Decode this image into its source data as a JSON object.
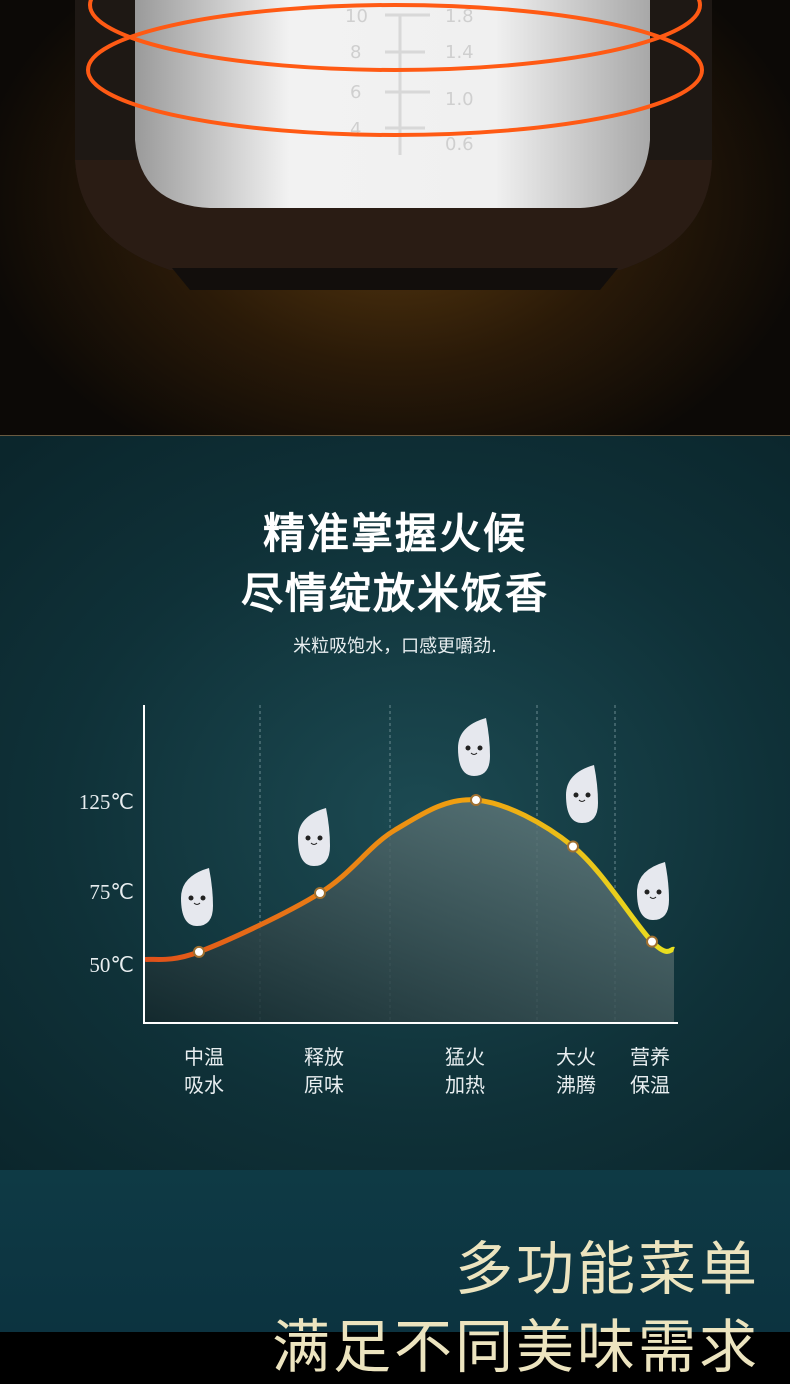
{
  "top": {
    "cup_marks_left": [
      "10",
      "8",
      "6",
      "4"
    ],
    "cup_marks_right": [
      "1.8",
      "1.4",
      "1.0",
      "0.6"
    ]
  },
  "section2": {
    "title_line1": "精准掌握火候",
    "title_line2": "尽情绽放米饭香",
    "subtitle": "米粒吸饱水，口感更嚼劲."
  },
  "chart_data": {
    "type": "area",
    "y_ticks": [
      "125℃",
      "75℃",
      "50℃"
    ],
    "categories": [
      [
        "中温",
        "吸水"
      ],
      [
        "释放",
        "原味"
      ],
      [
        "猛火",
        "加热"
      ],
      [
        "大火",
        "沸腾"
      ],
      [
        "营养",
        "保温"
      ]
    ],
    "values": [
      52,
      75,
      125,
      100,
      56
    ],
    "grid": "dashed vertical",
    "colors": {
      "start": "#e0501a",
      "mid": "#f0a010",
      "end": "#e8e020"
    }
  },
  "section3": {
    "title_line1": "多功能菜单",
    "title_line2": "满足不同美味需求"
  }
}
